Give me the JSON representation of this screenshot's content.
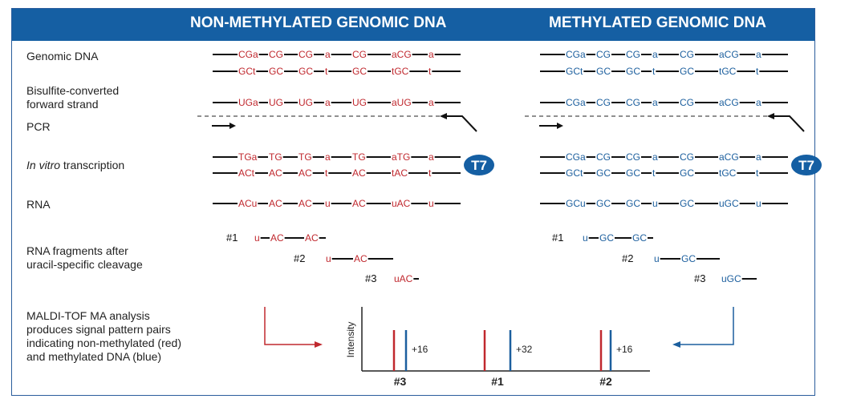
{
  "header": {
    "left_title": "NON-METHYLATED GENOMIC DNA",
    "right_title": "METHYLATED GENOMIC DNA"
  },
  "row_labels": {
    "genomic_dna": "Genomic DNA",
    "bisulfite_line1": "Bisulfite-converted",
    "bisulfite_line2": "forward strand",
    "pcr": "PCR",
    "ivt_italic": "In vitro",
    "ivt_rest": " transcription",
    "rna": "RNA",
    "frag_line1": "RNA fragments after",
    "frag_line2": "uracil-specific cleavage",
    "maldi_line1": "MALDI-TOF MA analysis",
    "maldi_line2": "produces signal pattern pairs",
    "maldi_line3": "indicating non-methylated (red)",
    "maldi_line4": "and methylated DNA (blue)"
  },
  "colors": {
    "red": "#c0282e",
    "blue": "#1c5f9e",
    "black": "#111111",
    "header_bg": "#155fa3"
  },
  "non_methylated": {
    "genomic_top": [
      "CGa",
      "CG",
      "CG",
      "a",
      "CG",
      "aCG",
      "a"
    ],
    "genomic_bottom": [
      "GCt",
      "GC",
      "GC",
      "t",
      "GC",
      "tGC",
      "t"
    ],
    "bisulfite": [
      "UGa",
      "UG",
      "UG",
      "a",
      "UG",
      "aUG",
      "a"
    ],
    "ivt_top": [
      "TGa",
      "TG",
      "TG",
      "a",
      "TG",
      "aTG",
      "a"
    ],
    "ivt_bottom": [
      "ACt",
      "AC",
      "AC",
      "t",
      "AC",
      "tAC",
      "t"
    ],
    "rna": [
      "ACu",
      "AC",
      "AC",
      "u",
      "AC",
      "uAC",
      "u"
    ],
    "fragments": [
      {
        "id": "#1",
        "parts": [
          "u",
          "AC",
          "AC"
        ]
      },
      {
        "id": "#2",
        "parts": [
          "u",
          "AC"
        ]
      },
      {
        "id": "#3",
        "parts": [
          "uAC"
        ]
      }
    ]
  },
  "methylated": {
    "genomic_top": [
      "CGa",
      "CG",
      "CG",
      "a",
      "CG",
      "aCG",
      "a"
    ],
    "genomic_bottom": [
      "GCt",
      "GC",
      "GC",
      "t",
      "GC",
      "tGC",
      "t"
    ],
    "bisulfite": [
      "CGa",
      "CG",
      "CG",
      "a",
      "CG",
      "aCG",
      "a"
    ],
    "ivt_top": [
      "CGa",
      "CG",
      "CG",
      "a",
      "CG",
      "aCG",
      "a"
    ],
    "ivt_bottom": [
      "GCt",
      "GC",
      "GC",
      "t",
      "GC",
      "tGC",
      "t"
    ],
    "rna": [
      "GCu",
      "GC",
      "GC",
      "u",
      "GC",
      "uGC",
      "u"
    ],
    "fragments": [
      {
        "id": "#1",
        "parts": [
          "u",
          "GC",
          "GC"
        ]
      },
      {
        "id": "#2",
        "parts": [
          "u",
          "GC"
        ]
      },
      {
        "id": "#3",
        "parts": [
          "uGC"
        ]
      }
    ]
  },
  "promoter_label": "T7",
  "spectrum": {
    "ylabel": "Intensity",
    "peaks": [
      {
        "id": "#3",
        "shift": "+16"
      },
      {
        "id": "#1",
        "shift": "+32"
      },
      {
        "id": "#2",
        "shift": "+16"
      }
    ]
  }
}
